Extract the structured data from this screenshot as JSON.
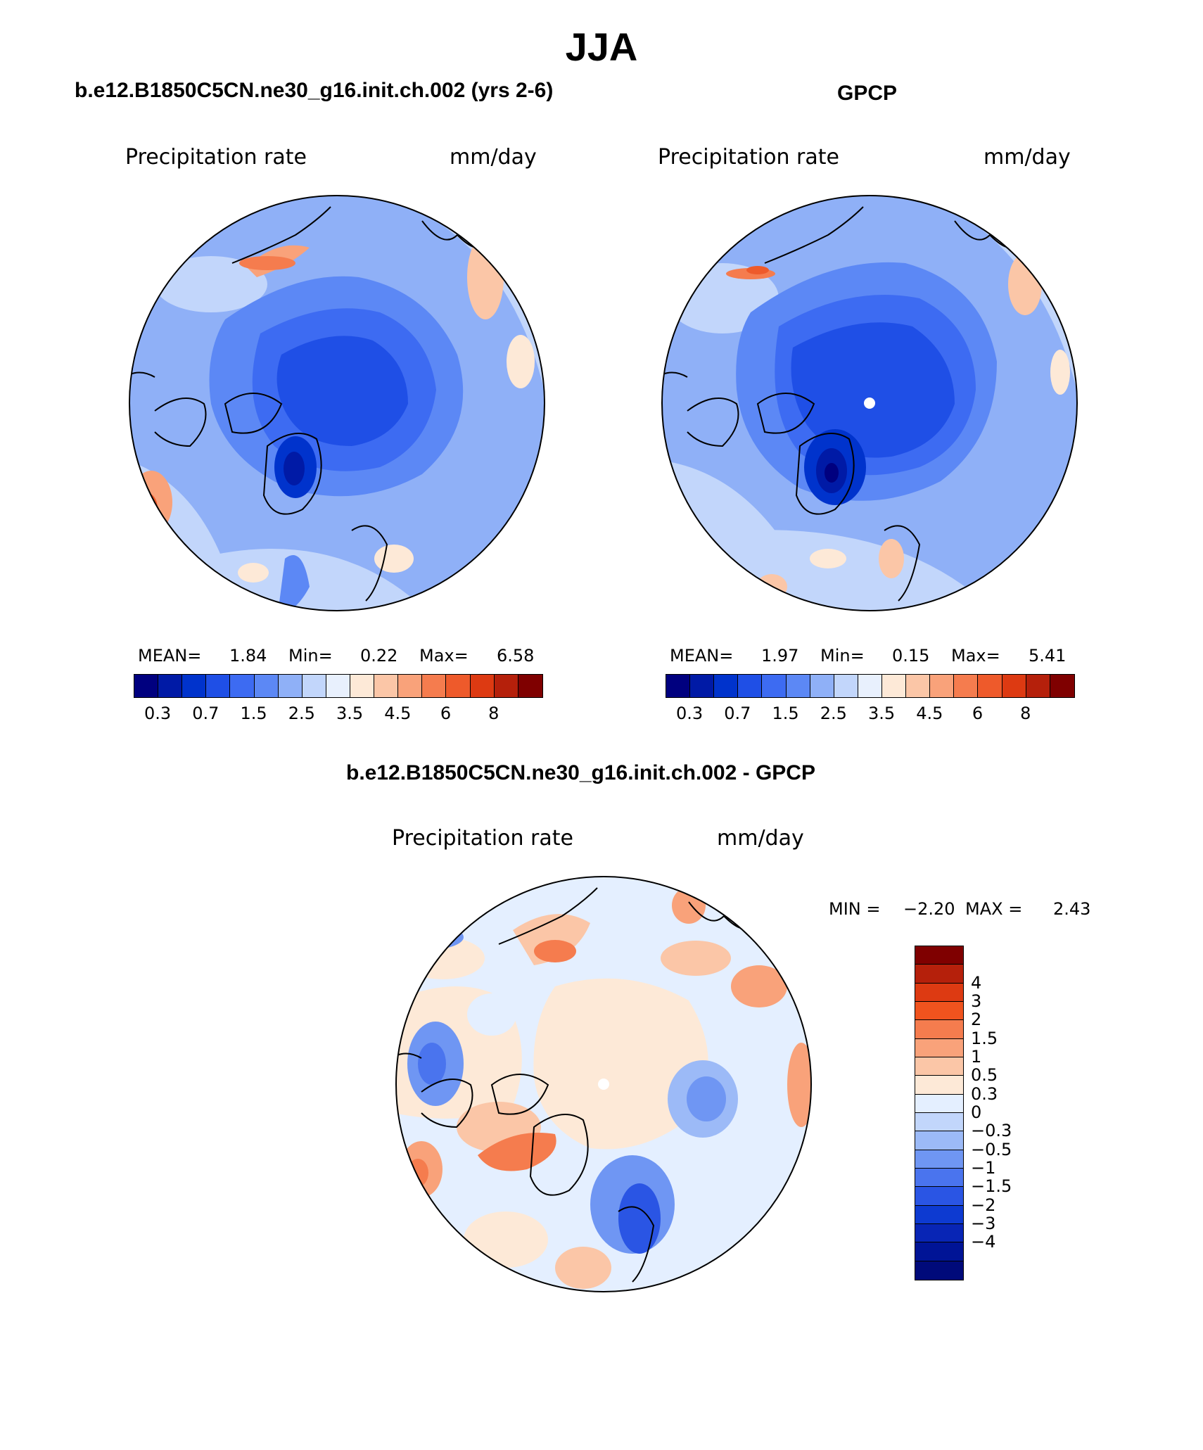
{
  "title": "JJA",
  "panel1": {
    "title": "b.e12.B1850C5CN.ne30_g16.init.ch.002 (yrs 2-6)",
    "variable": "Precipitation rate",
    "units": "mm/day",
    "mean_label": "MEAN=",
    "mean": "1.84",
    "min_label": "Min=",
    "min": "0.22",
    "max_label": "Max=",
    "max": "6.58"
  },
  "panel2": {
    "title": "GPCP",
    "variable": "Precipitation rate",
    "units": "mm/day",
    "mean_label": "MEAN=",
    "mean": "1.97",
    "min_label": "Min=",
    "min": "0.15",
    "max_label": "Max=",
    "max": "5.41"
  },
  "panel3": {
    "title": "b.e12.B1850C5CN.ne30_g16.init.ch.002 - GPCP",
    "variable": "Precipitation rate",
    "units": "mm/day",
    "min_label": "MIN =",
    "min": "−2.20",
    "max_label": "MAX =",
    "max": "2.43"
  },
  "abs_colorbar": {
    "colors": [
      "#00007f",
      "#001aa6",
      "#0033cc",
      "#1f4fe6",
      "#3d6bf2",
      "#5c88f5",
      "#8fb0f7",
      "#c2d6fb",
      "#e8f0fd",
      "#fde9d7",
      "#fbc6a7",
      "#f9a27a",
      "#f57c4e",
      "#ee5a2b",
      "#dd3a12",
      "#b5200b",
      "#7f0000"
    ],
    "labels": [
      "0.3",
      "0.7",
      "1.5",
      "2.5",
      "3.5",
      "4.5",
      "6",
      "8"
    ]
  },
  "diff_colorbar": {
    "colors": [
      "#7f0000",
      "#b5200b",
      "#dd3a12",
      "#f0531e",
      "#f57c4e",
      "#f9a27a",
      "#fbc6a7",
      "#fde9d7",
      "#e4efff",
      "#c2d6fb",
      "#9cbaf7",
      "#6f96f3",
      "#4a74ee",
      "#2a55e4",
      "#0d3ad1",
      "#0825b5",
      "#001496",
      "#000a7a"
    ],
    "labels": [
      "4",
      "3",
      "2",
      "1.5",
      "1",
      "0.5",
      "0.3",
      "0",
      "−0.3",
      "−0.5",
      "−1",
      "−1.5",
      "−2",
      "−3",
      "−4"
    ]
  }
}
